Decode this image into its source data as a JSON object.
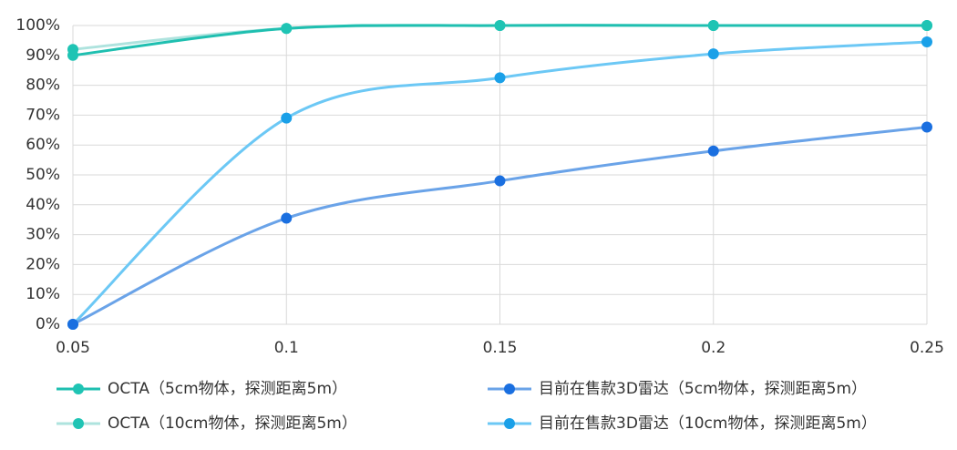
{
  "chart_data": {
    "type": "line",
    "x": [
      0.05,
      0.1,
      0.15,
      0.2,
      0.25
    ],
    "xlim": [
      0.05,
      0.25
    ],
    "xticks": [
      0.05,
      0.1,
      0.15,
      0.2,
      0.25
    ],
    "ylim": [
      0,
      100
    ],
    "yticks": [
      {
        "value": 0,
        "label": "0%"
      },
      {
        "value": 10,
        "label": "10%"
      },
      {
        "value": 20,
        "label": "20%"
      },
      {
        "value": 30,
        "label": "30%"
      },
      {
        "value": 40,
        "label": "40%"
      },
      {
        "value": 50,
        "label": "50%"
      },
      {
        "value": 60,
        "label": "60%"
      },
      {
        "value": 70,
        "label": "70%"
      },
      {
        "value": 80,
        "label": "80%"
      },
      {
        "value": 90,
        "label": "90%"
      },
      {
        "value": 100,
        "label": "100%"
      }
    ],
    "grid": true,
    "smooth": true,
    "legend": "bottom",
    "series": [
      {
        "name": "OCTA（5cm物体，探测距离5m）",
        "color": "#1fbfb0",
        "marker_color": "#1fc4b4",
        "values": [
          90,
          99,
          100,
          100,
          100
        ]
      },
      {
        "name": "目前在售款3D雷达（5cm物体，探测距离5m）",
        "color": "#6aa3e8",
        "marker_color": "#1a6fe0",
        "values": [
          0,
          35.5,
          48,
          58,
          66
        ]
      },
      {
        "name": "OCTA（10cm物体，探测距离5m）",
        "color": "#aee3de",
        "marker_color": "#1fc4b4",
        "values": [
          92,
          99,
          100,
          100,
          100
        ]
      },
      {
        "name": "目前在售款3D雷达（10cm物体，探测距离5m）",
        "color": "#6cc8f5",
        "marker_color": "#1aa0e8",
        "values": [
          0,
          69,
          82.5,
          90.5,
          94.5
        ]
      }
    ]
  }
}
